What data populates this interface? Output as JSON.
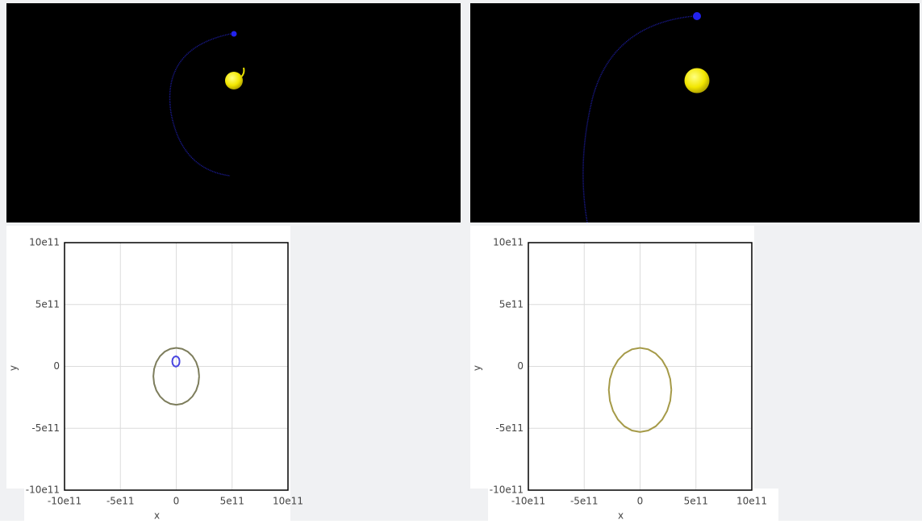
{
  "chart_data": [
    {
      "type": "line",
      "xlabel": "x",
      "ylabel": "y",
      "xlim": [
        -1000000000000.0,
        1000000000000.0
      ],
      "ylim": [
        -1000000000000.0,
        1000000000000.0
      ],
      "xticks": [
        {
          "value": -1000000000000.0,
          "label": "-10e11"
        },
        {
          "value": -500000000000.0,
          "label": "-5e11"
        },
        0,
        {
          "value": 500000000000.0,
          "label": "5e11"
        },
        {
          "value": 1000000000000.0,
          "label": "10e11"
        }
      ],
      "yticks": [
        {
          "value": -1000000000000.0,
          "label": "-10e11"
        },
        {
          "value": -500000000000.0,
          "label": "-5e11"
        },
        0,
        {
          "value": 500000000000.0,
          "label": "5e11"
        },
        {
          "value": 1000000000000.0,
          "label": "10e11"
        }
      ],
      "grid": true,
      "series": [
        {
          "color": "#7d7d5c",
          "x": [
            205000000000.0,
            198000000000.0,
            178000000000.0,
            145000000000.0,
            103000000000.0,
            53000000000.0,
            0,
            -53000000000.0,
            -103000000000.0,
            -145000000000.0,
            -178000000000.0,
            -198000000000.0,
            -205000000000.0,
            -198000000000.0,
            -178000000000.0,
            -145000000000.0,
            -103000000000.0,
            -53000000000.0,
            0,
            53000000000.0,
            103000000000.0,
            145000000000.0,
            178000000000.0,
            198000000000.0,
            205000000000.0
          ],
          "values": [
            -80000000000.0,
            -20000000000.0,
            35000000000.0,
            83000000000.0,
            119000000000.0,
            142000000000.0,
            150000000000.0,
            142000000000.0,
            119000000000.0,
            83000000000.0,
            35000000000.0,
            -20000000000.0,
            -80000000000.0,
            -140000000000.0,
            -195000000000.0,
            -243000000000.0,
            -279000000000.0,
            -302000000000.0,
            -310000000000.0,
            -302000000000.0,
            -279000000000.0,
            -243000000000.0,
            -195000000000.0,
            -140000000000.0,
            -80000000000.0
          ]
        },
        {
          "color": "#4a46e0",
          "x": [
            30000000000.0,
            26000000000.0,
            14000000000.0,
            -3000000000.0,
            -20000000000.0,
            -32000000000.0,
            -36000000000.0,
            -32000000000.0,
            -20000000000.0,
            -3000000000.0,
            14000000000.0,
            26000000000.0,
            30000000000.0
          ],
          "values": [
            40000000000.0,
            61000000000.0,
            76000000000.0,
            82000000000.0,
            76000000000.0,
            61000000000.0,
            40000000000.0,
            19000000000.0,
            4000000000.0,
            -2000000000.0,
            4000000000.0,
            19000000000.0,
            40000000000.0
          ]
        }
      ]
    },
    {
      "type": "line",
      "xlabel": "x",
      "ylabel": "y",
      "xlim": [
        -1000000000000.0,
        1000000000000.0
      ],
      "ylim": [
        -1000000000000.0,
        1000000000000.0
      ],
      "xticks": [
        {
          "value": -1000000000000.0,
          "label": "-10e11"
        },
        {
          "value": -500000000000.0,
          "label": "-5e11"
        },
        0,
        {
          "value": 500000000000.0,
          "label": "5e11"
        },
        {
          "value": 1000000000000.0,
          "label": "10e11"
        }
      ],
      "yticks": [
        {
          "value": -1000000000000.0,
          "label": "-10e11"
        },
        {
          "value": -500000000000.0,
          "label": "-5e11"
        },
        0,
        {
          "value": 500000000000.0,
          "label": "5e11"
        },
        {
          "value": 1000000000000.0,
          "label": "10e11"
        }
      ],
      "grid": true,
      "series": [
        {
          "color": "#a59a48",
          "x": [
            280000000000.0,
            270000000000.0,
            242000000000.0,
            198000000000.0,
            140000000000.0,
            73000000000.0,
            0,
            -73000000000.0,
            -140000000000.0,
            -198000000000.0,
            -242000000000.0,
            -270000000000.0,
            -280000000000.0,
            -270000000000.0,
            -242000000000.0,
            -198000000000.0,
            -140000000000.0,
            -73000000000.0,
            0,
            73000000000.0,
            140000000000.0,
            198000000000.0,
            242000000000.0,
            270000000000.0,
            280000000000.0
          ],
          "values": [
            -190000000000.0,
            -102000000000.0,
            -20000000000.0,
            50000000000.0,
            104000000000.0,
            138000000000.0,
            150000000000.0,
            138000000000.0,
            104000000000.0,
            50000000000.0,
            -20000000000.0,
            -102000000000.0,
            -190000000000.0,
            -278000000000.0,
            -360000000000.0,
            -430000000000.0,
            -484000000000.0,
            -518000000000.0,
            -530000000000.0,
            -518000000000.0,
            -484000000000.0,
            -430000000000.0,
            -360000000000.0,
            -278000000000.0,
            -190000000000.0
          ]
        }
      ]
    }
  ]
}
